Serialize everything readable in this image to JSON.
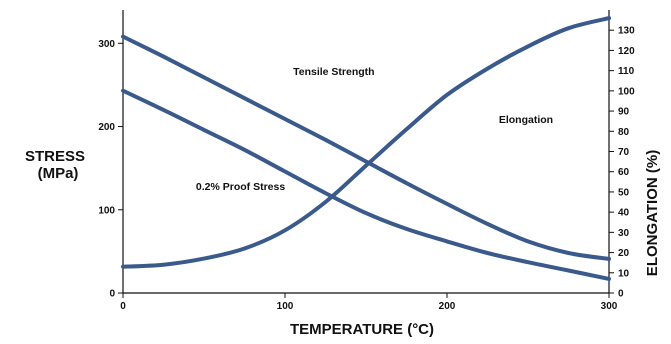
{
  "chart_data": {
    "type": "line",
    "xlabel": "TEMPERATURE (°C)",
    "ylabel_left": [
      "STRESS",
      "(MPa)"
    ],
    "ylabel_right": "ELONGATION (%)",
    "xlim": [
      0,
      300
    ],
    "ylim_left": [
      0,
      340
    ],
    "ylim_right": [
      0,
      140
    ],
    "x_ticks": [
      0,
      100,
      200,
      300
    ],
    "y_left_ticks": [
      0,
      100,
      200,
      300
    ],
    "y_right_ticks": [
      0,
      10,
      20,
      30,
      40,
      50,
      60,
      70,
      80,
      90,
      100,
      110,
      120,
      130
    ],
    "grid": false,
    "series": [
      {
        "name": "Tensile Strength",
        "axis": "left",
        "x": [
          0,
          25,
          50,
          75,
          100,
          125,
          150,
          175,
          200,
          225,
          250,
          275,
          300
        ],
        "y": [
          308,
          284,
          259,
          234,
          209,
          184,
          158,
          132,
          107,
          83,
          62,
          48,
          41
        ]
      },
      {
        "name": "0.2% Proof Stress",
        "axis": "left",
        "x": [
          0,
          25,
          50,
          75,
          100,
          125,
          150,
          175,
          200,
          225,
          250,
          275,
          300
        ],
        "y": [
          243,
          220,
          196,
          172,
          146,
          120,
          96,
          77,
          62,
          48,
          37,
          27,
          17
        ]
      },
      {
        "name": "Elongation",
        "axis": "right",
        "x": [
          0,
          25,
          50,
          75,
          100,
          125,
          150,
          175,
          200,
          225,
          250,
          275,
          300
        ],
        "y": [
          13,
          14,
          17,
          22,
          31,
          45,
          63,
          81,
          98,
          111,
          122,
          131,
          136
        ]
      }
    ],
    "annotations": [
      {
        "text": "Tensile Strength",
        "x": 105,
        "y": 262
      },
      {
        "text": "0.2% Proof Stress",
        "x": 45,
        "y": 124
      },
      {
        "text": "Elongation",
        "x": 232,
        "y": 204
      }
    ]
  }
}
